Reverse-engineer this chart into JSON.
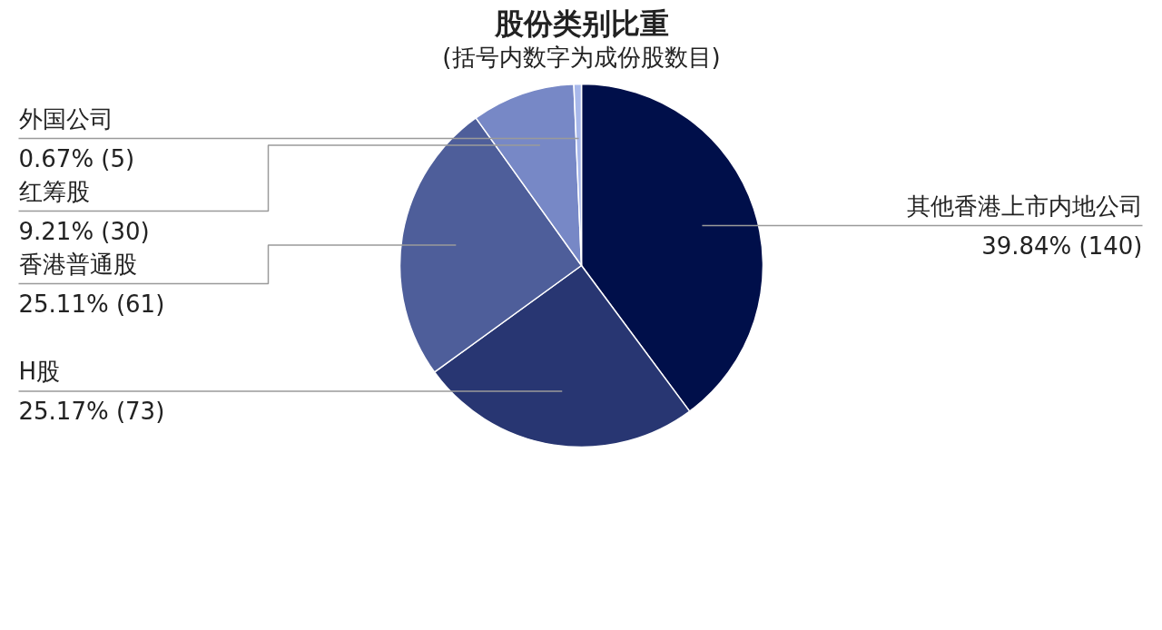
{
  "chart_data": {
    "type": "pie",
    "title": "股份类别比重",
    "subtitle": "(括号内数字为成份股数目)",
    "categories": [
      "其他香港上市内地公司",
      "H股",
      "香港普通股",
      "红筹股",
      "外国公司"
    ],
    "values": [
      39.84,
      25.17,
      25.11,
      9.21,
      0.67
    ],
    "colors": [
      "#000f4a",
      "#283672",
      "#4e5e9a",
      "#7788c6",
      "#a8b8ea"
    ],
    "value_labels": [
      "39.84% (140)",
      "25.17% (73)",
      "25.11% (61)",
      "9.21% (30)",
      "0.67% (5)"
    ]
  }
}
